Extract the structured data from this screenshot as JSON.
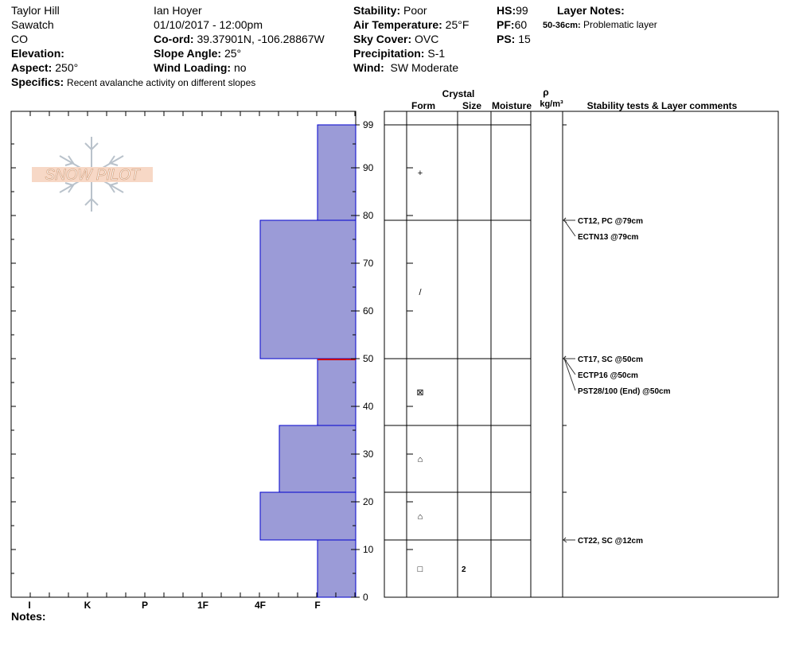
{
  "header": {
    "location": "Taylor Hill",
    "range": "Sawatch",
    "state": "CO",
    "elevation_label": "Elevation:",
    "elevation_value": "",
    "aspect_label": "Aspect:",
    "aspect_value": "250°",
    "specifics_label": "Specifics:",
    "specifics_value": "Recent avalanche activity on different slopes",
    "observer": "Ian Hoyer",
    "datetime": "01/10/2017 - 12:00pm",
    "coord_label": "Co-ord:",
    "coord_value": "39.37901N, -106.28867W",
    "slope_label": "Slope Angle:",
    "slope_value": "25°",
    "wind_loading_label": "Wind Loading:",
    "wind_loading_value": "no",
    "stability_label": "Stability:",
    "stability_value": "Poor",
    "air_temp_label": "Air Temperature:",
    "air_temp_value": "25°F",
    "sky_label": "Sky Cover:",
    "sky_value": "OVC",
    "precip_label": "Precipitation:",
    "precip_value": "S-1",
    "wind_label": "Wind:",
    "wind_value": "SW Moderate",
    "hs_label": "HS:",
    "hs_value": "99",
    "pf_label": "PF:",
    "pf_value": "60",
    "ps_label": "PS:",
    "ps_value": "15",
    "layer_notes_label": "Layer Notes:",
    "layer_note_range": "50-36cm:",
    "layer_note_text": "Problematic layer"
  },
  "logo_text": "SNOW PILOT",
  "notes_label": "Notes:",
  "colors": {
    "hardness_fill": "#9b9bd7",
    "hardness_stroke": "#0000cc",
    "weak_layer": "#cc0000"
  },
  "chart_data": {
    "type": "bar",
    "orientation": "horizontal",
    "y_axis": {
      "min": 0,
      "max": 99,
      "ticks": [
        0,
        10,
        20,
        30,
        40,
        50,
        60,
        70,
        80,
        90,
        99
      ]
    },
    "x_axis": {
      "categories": [
        "I",
        "K",
        "P",
        "1F",
        "4F",
        "F"
      ],
      "reversed": true
    },
    "layers": [
      {
        "top": 99,
        "bottom": 79,
        "hardness": "F"
      },
      {
        "top": 79,
        "bottom": 50,
        "hardness": "4F"
      },
      {
        "top": 50,
        "bottom": 36,
        "hardness": "F"
      },
      {
        "top": 36,
        "bottom": 22,
        "hardness": "4F-"
      },
      {
        "top": 22,
        "bottom": 12,
        "hardness": "4F"
      },
      {
        "top": 12,
        "bottom": 0,
        "hardness": "F"
      }
    ],
    "weak_layer_depth": 50,
    "grid": false
  },
  "crystal_table": {
    "title": "Crystal",
    "headers": {
      "form": "Form",
      "size": "Size",
      "moisture": "Moisture",
      "rho": "ρ",
      "density_unit": "kg/m³",
      "comments": "Stability tests & Layer comments"
    },
    "boundaries": [
      99,
      79,
      50,
      36,
      22,
      12,
      0
    ],
    "rows": [
      {
        "depth": 89,
        "form": "+",
        "size": ""
      },
      {
        "depth": 64,
        "form": "/",
        "size": ""
      },
      {
        "depth": 43,
        "form": "⊠",
        "size": ""
      },
      {
        "depth": 29,
        "form": "⌂",
        "size": ""
      },
      {
        "depth": 17,
        "form": "⌂",
        "size": ""
      },
      {
        "depth": 6,
        "form": "□",
        "size": "2"
      }
    ],
    "tests": [
      {
        "depth": 79,
        "labels": [
          "CT12, PC @79cm",
          "ECTN13 @79cm"
        ]
      },
      {
        "depth": 50,
        "labels": [
          "CT17, SC @50cm",
          "ECTP16 @50cm",
          "PST28/100 (End) @50cm"
        ]
      },
      {
        "depth": 12,
        "labels": [
          "CT22, SC @12cm"
        ]
      }
    ]
  }
}
